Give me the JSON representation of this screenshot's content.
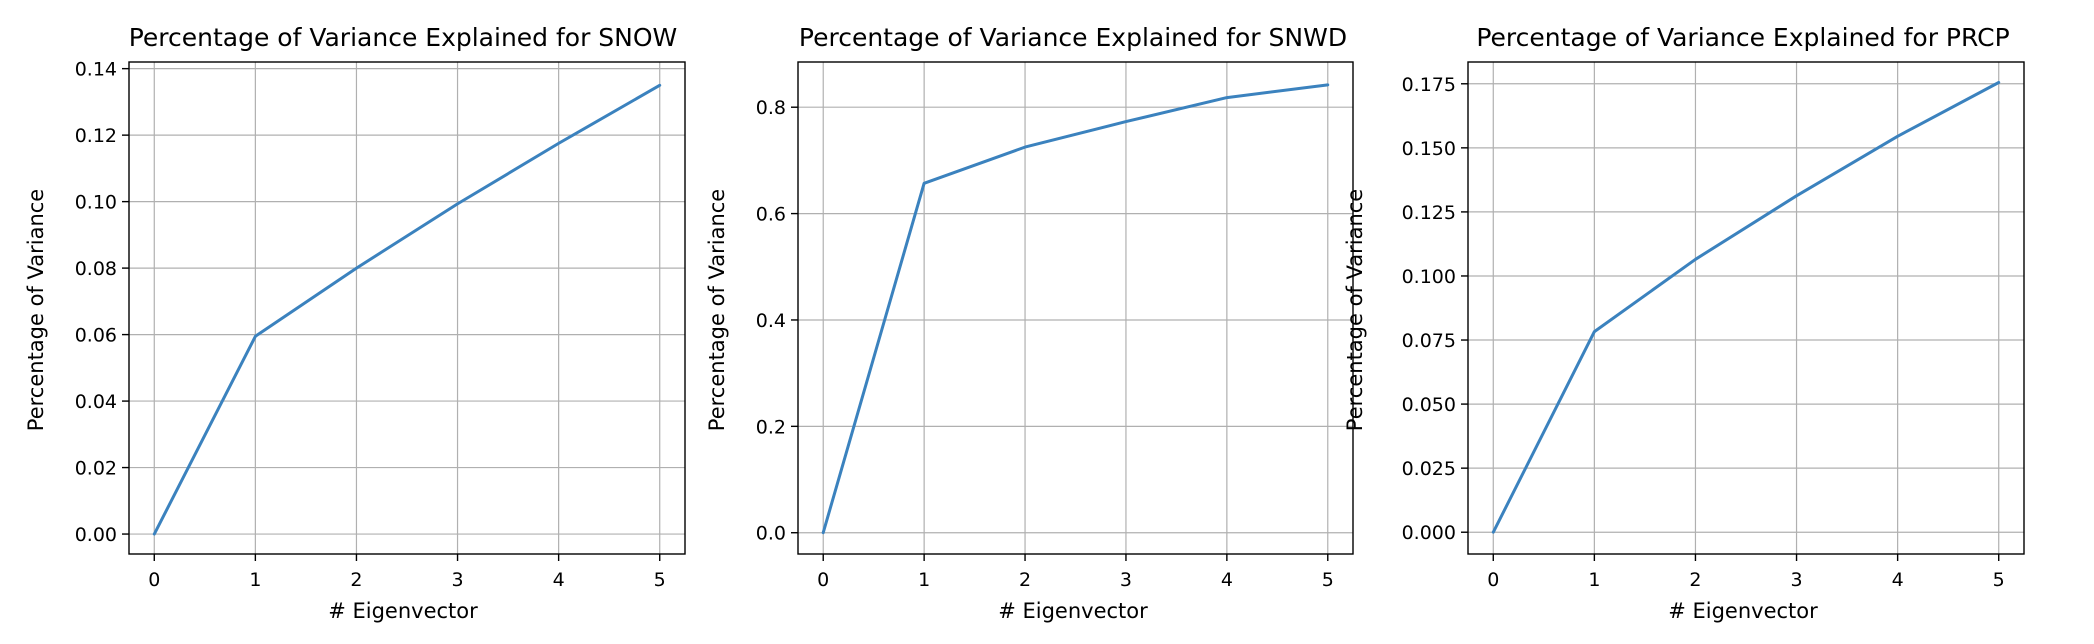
{
  "colors": {
    "line": "#3b82be",
    "grid": "#b0b0b0",
    "axes": "#000000"
  },
  "chart_data": [
    {
      "type": "line",
      "title": "Percentage of Variance Explained for SNOW",
      "xlabel": "# Eigenvector",
      "ylabel": "Percentage of Variance",
      "grid": true,
      "xlim": [
        -0.25,
        5.25
      ],
      "ylim": [
        -0.006,
        0.142
      ],
      "xticks": [
        0,
        1,
        2,
        3,
        4,
        5
      ],
      "yticks": [
        0.0,
        0.02,
        0.04,
        0.06,
        0.08,
        0.1,
        0.12,
        0.14
      ],
      "ytick_labels": [
        "0.00",
        "0.02",
        "0.04",
        "0.06",
        "0.08",
        "0.10",
        "0.12",
        "0.14"
      ],
      "series": [
        {
          "x": [
            0,
            1,
            2,
            3,
            4,
            5
          ],
          "y": [
            0.0,
            0.0595,
            0.08,
            0.0993,
            0.1175,
            0.135
          ]
        }
      ]
    },
    {
      "type": "line",
      "title": "Percentage of Variance Explained for SNWD",
      "xlabel": "# Eigenvector",
      "ylabel": "Percentage of Variance",
      "grid": true,
      "xlim": [
        -0.25,
        5.25
      ],
      "ylim": [
        -0.04,
        0.885
      ],
      "xticks": [
        0,
        1,
        2,
        3,
        4,
        5
      ],
      "yticks": [
        0.0,
        0.2,
        0.4,
        0.6,
        0.8
      ],
      "ytick_labels": [
        "0.0",
        "0.2",
        "0.4",
        "0.6",
        "0.8"
      ],
      "series": [
        {
          "x": [
            0,
            1,
            2,
            3,
            4,
            5
          ],
          "y": [
            0.0,
            0.657,
            0.725,
            0.773,
            0.818,
            0.842
          ]
        }
      ]
    },
    {
      "type": "line",
      "title": "Percentage of Variance Explained for PRCP",
      "xlabel": "# Eigenvector",
      "ylabel": "Percentage of Variance",
      "grid": true,
      "xlim": [
        -0.25,
        5.25
      ],
      "ylim": [
        -0.0085,
        0.1835
      ],
      "xticks": [
        0,
        1,
        2,
        3,
        4,
        5
      ],
      "yticks": [
        0.0,
        0.025,
        0.05,
        0.075,
        0.1,
        0.125,
        0.15,
        0.175
      ],
      "ytick_labels": [
        "0.000",
        "0.025",
        "0.050",
        "0.075",
        "0.100",
        "0.125",
        "0.150",
        "0.175"
      ],
      "series": [
        {
          "x": [
            0,
            1,
            2,
            3,
            4,
            5
          ],
          "y": [
            0.0,
            0.0783,
            0.1065,
            0.1313,
            0.1545,
            0.1755
          ]
        }
      ]
    }
  ]
}
